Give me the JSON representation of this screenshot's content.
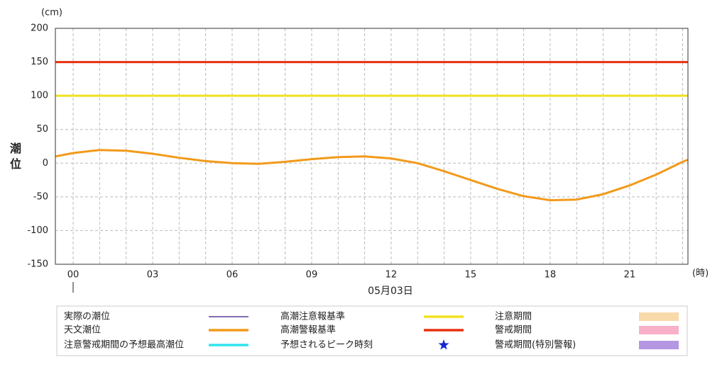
{
  "chart_data": {
    "type": "line",
    "y_label": "潮位",
    "y_unit": "(cm)",
    "x_unit": "(時)",
    "date": "05月03日",
    "ylim": [
      -150,
      200
    ],
    "yticks": [
      -150,
      -100,
      -50,
      0,
      50,
      100,
      150,
      200
    ],
    "xlim": [
      -0.67,
      23.2
    ],
    "xticks": [
      {
        "value": 0,
        "label": "00"
      },
      {
        "value": 3,
        "label": "03"
      },
      {
        "value": 6,
        "label": "06"
      },
      {
        "value": 9,
        "label": "09"
      },
      {
        "value": 12,
        "label": "12"
      },
      {
        "value": 15,
        "label": "15"
      },
      {
        "value": 18,
        "label": "18"
      },
      {
        "value": 21,
        "label": "21"
      }
    ],
    "x_minor_ticks": [
      1,
      2,
      4,
      5,
      7,
      8,
      10,
      11,
      13,
      14,
      16,
      17,
      19,
      20,
      22,
      23
    ],
    "grid": true,
    "series": [
      {
        "name": "実際の潮位",
        "color": "#5b3c9c",
        "style": "thin"
      },
      {
        "name": "高潮注意報基準",
        "color": "#f0e020",
        "style": "line",
        "value": 100
      },
      {
        "name": "注意期間",
        "color": "#f8d9a8",
        "style": "band"
      },
      {
        "name": "天文潮位",
        "color": "#f29a1a",
        "style": "line",
        "x": [
          -0.67,
          0,
          1,
          2,
          3,
          4,
          5,
          6,
          7,
          8,
          9,
          10,
          11,
          12,
          13,
          14,
          15,
          16,
          17,
          18,
          19,
          20,
          21,
          22,
          23,
          23.2
        ],
        "values": [
          10,
          15,
          19.5,
          18.5,
          14,
          8,
          3,
          0,
          -1,
          2,
          6,
          9,
          10,
          7,
          0,
          -12,
          -25,
          -38,
          -49,
          -55,
          -54,
          -46,
          -33,
          -17,
          2,
          5
        ]
      },
      {
        "name": "高潮警報基準",
        "color": "#e83010",
        "style": "line",
        "value": 150
      },
      {
        "name": "警戒期間",
        "color": "#f8b0c8",
        "style": "band"
      },
      {
        "name": "注意警戒期間の予想最高潮位",
        "color": "#30e4f0",
        "style": "line"
      },
      {
        "name": "予想されるピーク時刻",
        "color": "#1428d0",
        "style": "star"
      },
      {
        "name": "警戒期間(特別警報)",
        "color": "#b496e2",
        "style": "band"
      }
    ]
  }
}
